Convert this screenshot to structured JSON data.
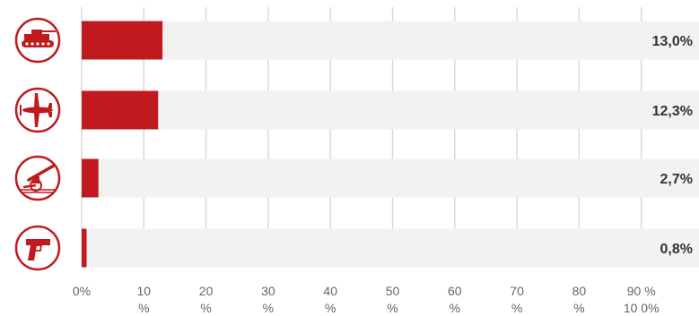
{
  "chart_data": {
    "type": "bar",
    "orientation": "horizontal",
    "categories": [
      "tank-icon",
      "airplane-icon",
      "artillery-icon",
      "pistol-icon"
    ],
    "values": [
      13.0,
      12.3,
      2.7,
      0.8
    ],
    "value_labels": [
      "13,0%",
      "12,3%",
      "2,7%",
      "0,8%"
    ],
    "xlim": [
      0,
      100
    ],
    "x_ticks": [
      {
        "value": 0,
        "line1": "0%",
        "line2": ""
      },
      {
        "value": 10,
        "line1": "10",
        "line2": "%"
      },
      {
        "value": 20,
        "line1": "20",
        "line2": "%"
      },
      {
        "value": 30,
        "line1": "30",
        "line2": "%"
      },
      {
        "value": 40,
        "line1": "40",
        "line2": "%"
      },
      {
        "value": 50,
        "line1": "50",
        "line2": "%"
      },
      {
        "value": 60,
        "line1": "60",
        "line2": "%"
      },
      {
        "value": 70,
        "line1": "70",
        "line2": "%"
      },
      {
        "value": 80,
        "line1": "80",
        "line2": "%"
      },
      {
        "value": 90,
        "line1": "90 %",
        "line2": "10 0%"
      }
    ],
    "grid": true,
    "colors": {
      "bar": "#c0191e",
      "track": "#f2f2f2",
      "grid": "#d9d9d9",
      "icon": "#c0191e"
    }
  }
}
